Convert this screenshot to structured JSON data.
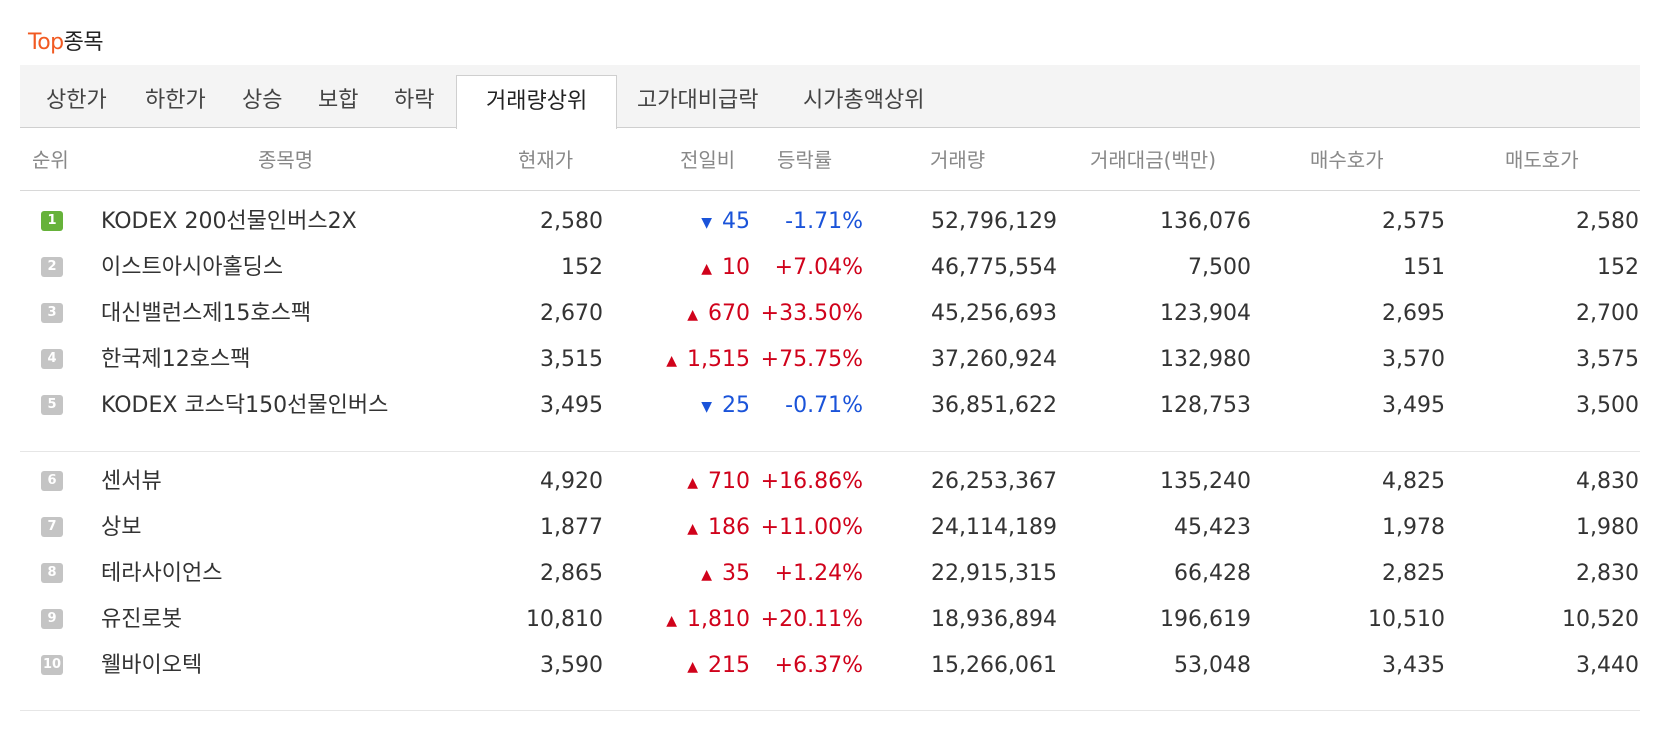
{
  "title": {
    "accent": "Top",
    "rest": "종목"
  },
  "tabs": [
    "상한가",
    "하한가",
    "상승",
    "보합",
    "하락",
    "거래량상위",
    "고가대비급락",
    "시가총액상위"
  ],
  "active_tab": "거래량상위",
  "columns": {
    "rank": "순위",
    "name": "종목명",
    "price": "현재가",
    "change": "전일비",
    "rate": "등락률",
    "volume": "거래량",
    "amount": "거래대금(백만)",
    "bid": "매수호가",
    "ask": "매도호가"
  },
  "direction_icons": {
    "up": "triangle-up-icon",
    "down": "triangle-down-icon"
  },
  "colors": {
    "accent": "#f15a22",
    "up": "#d0021b",
    "down": "#1a53d9",
    "rank_first": "#66b23a",
    "rank_other": "#c4c4c4"
  },
  "rows": [
    {
      "rank": "1",
      "name": "KODEX 200선물인버스2X",
      "price": "2,580",
      "dir": "down",
      "change": "45",
      "rate": "-1.71%",
      "volume": "52,796,129",
      "amount": "136,076",
      "bid": "2,575",
      "ask": "2,580"
    },
    {
      "rank": "2",
      "name": "이스트아시아홀딩스",
      "price": "152",
      "dir": "up",
      "change": "10",
      "rate": "+7.04%",
      "volume": "46,775,554",
      "amount": "7,500",
      "bid": "151",
      "ask": "152"
    },
    {
      "rank": "3",
      "name": "대신밸런스제15호스팩",
      "price": "2,670",
      "dir": "up",
      "change": "670",
      "rate": "+33.50%",
      "volume": "45,256,693",
      "amount": "123,904",
      "bid": "2,695",
      "ask": "2,700"
    },
    {
      "rank": "4",
      "name": "한국제12호스팩",
      "price": "3,515",
      "dir": "up",
      "change": "1,515",
      "rate": "+75.75%",
      "volume": "37,260,924",
      "amount": "132,980",
      "bid": "3,570",
      "ask": "3,575"
    },
    {
      "rank": "5",
      "name": "KODEX 코스닥150선물인버스",
      "price": "3,495",
      "dir": "down",
      "change": "25",
      "rate": "-0.71%",
      "volume": "36,851,622",
      "amount": "128,753",
      "bid": "3,495",
      "ask": "3,500"
    },
    {
      "rank": "6",
      "name": "센서뷰",
      "price": "4,920",
      "dir": "up",
      "change": "710",
      "rate": "+16.86%",
      "volume": "26,253,367",
      "amount": "135,240",
      "bid": "4,825",
      "ask": "4,830"
    },
    {
      "rank": "7",
      "name": "상보",
      "price": "1,877",
      "dir": "up",
      "change": "186",
      "rate": "+11.00%",
      "volume": "24,114,189",
      "amount": "45,423",
      "bid": "1,978",
      "ask": "1,980"
    },
    {
      "rank": "8",
      "name": "테라사이언스",
      "price": "2,865",
      "dir": "up",
      "change": "35",
      "rate": "+1.24%",
      "volume": "22,915,315",
      "amount": "66,428",
      "bid": "2,825",
      "ask": "2,830"
    },
    {
      "rank": "9",
      "name": "유진로봇",
      "price": "10,810",
      "dir": "up",
      "change": "1,810",
      "rate": "+20.11%",
      "volume": "18,936,894",
      "amount": "196,619",
      "bid": "10,510",
      "ask": "10,520"
    },
    {
      "rank": "10",
      "name": "웰바이오텍",
      "price": "3,590",
      "dir": "up",
      "change": "215",
      "rate": "+6.37%",
      "volume": "15,266,061",
      "amount": "53,048",
      "bid": "3,435",
      "ask": "3,440"
    }
  ]
}
